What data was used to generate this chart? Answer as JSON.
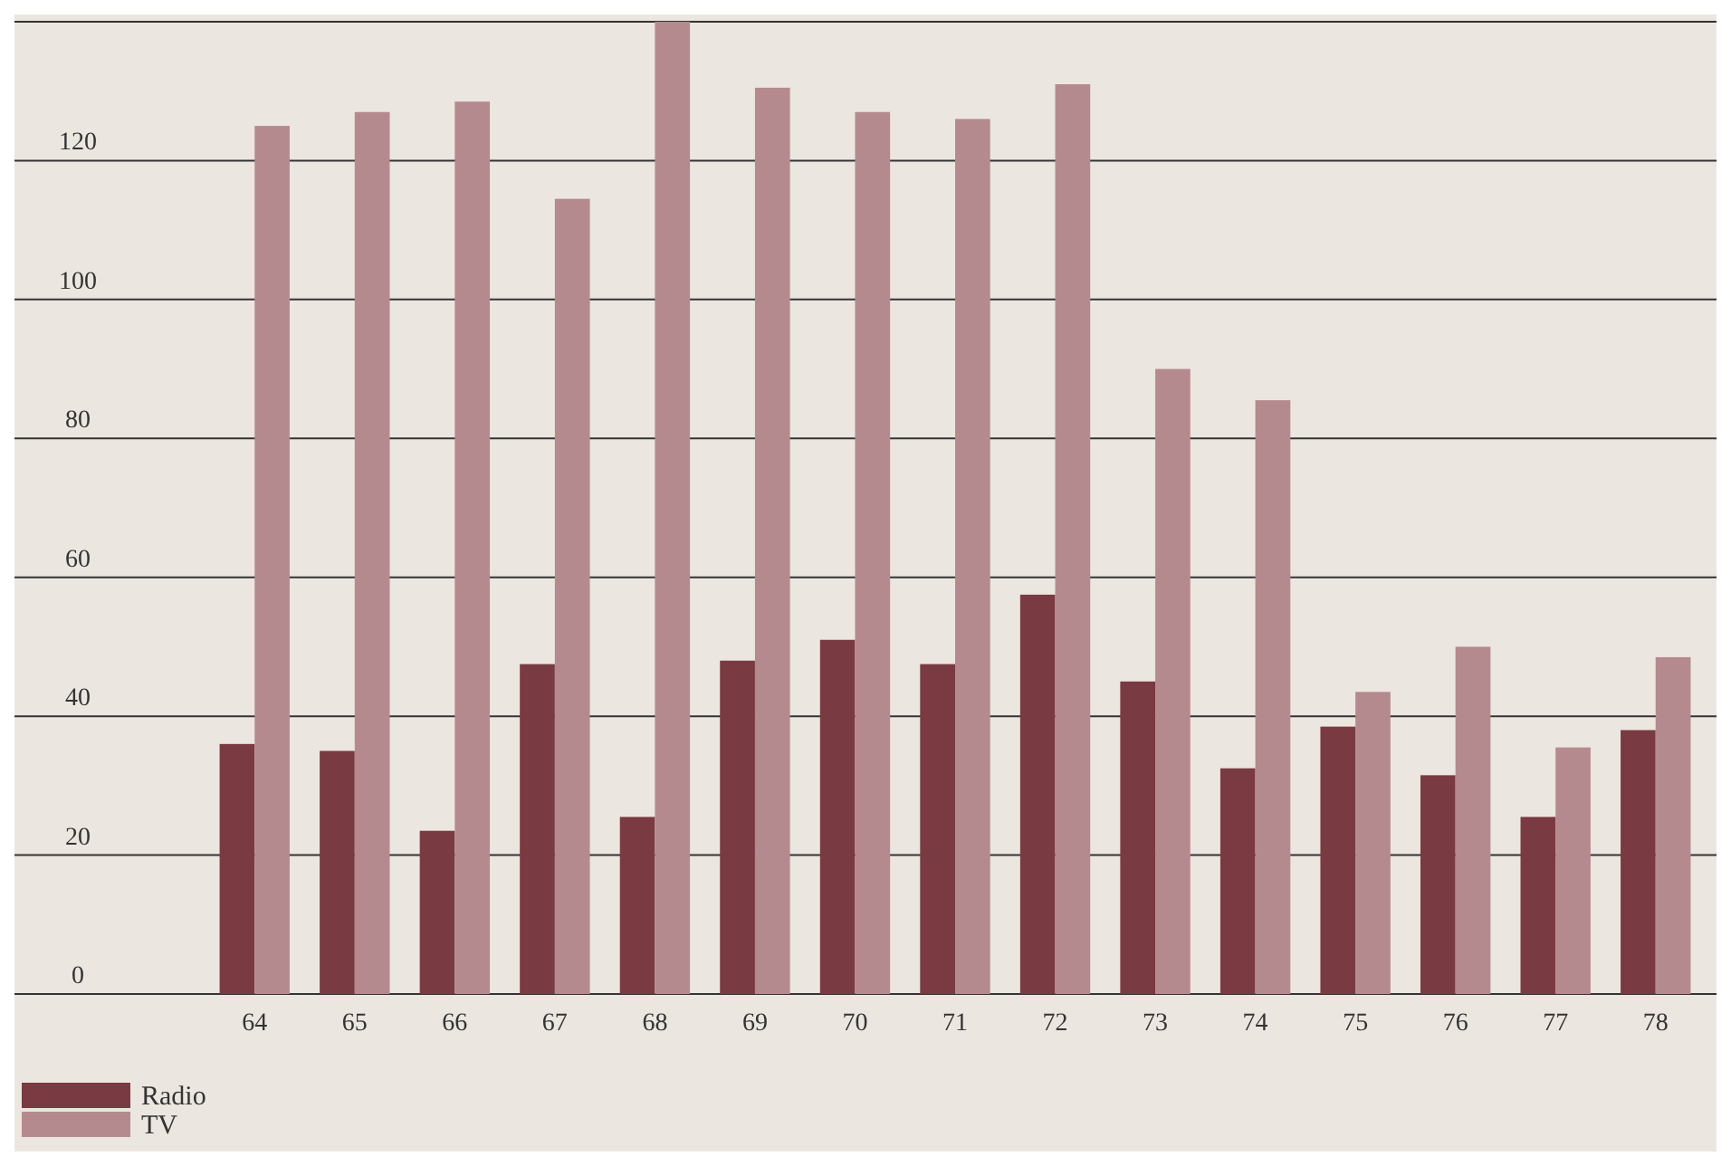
{
  "chart_data": {
    "type": "bar",
    "categories": [
      "64",
      "65",
      "66",
      "67",
      "68",
      "69",
      "70",
      "71",
      "72",
      "73",
      "74",
      "75",
      "76",
      "77",
      "78"
    ],
    "series": [
      {
        "name": "Radio",
        "color": "#7a3a42",
        "values": [
          36,
          35,
          23.5,
          47.5,
          25.5,
          48,
          51,
          47.5,
          57.5,
          45,
          32.5,
          38.5,
          31.5,
          25.5,
          38
        ]
      },
      {
        "name": "TV",
        "color": "#b58a8e",
        "values": [
          125,
          127,
          128.5,
          114.5,
          140,
          130.5,
          127,
          126,
          131,
          90,
          85.5,
          43.5,
          50,
          35.5,
          48.5
        ]
      }
    ],
    "ylim": [
      0,
      140
    ],
    "yticks": [
      0,
      20,
      40,
      60,
      80,
      100,
      120,
      {
        "value": 140,
        "label": null
      }
    ],
    "grid": "y",
    "legend": "bottom left"
  }
}
